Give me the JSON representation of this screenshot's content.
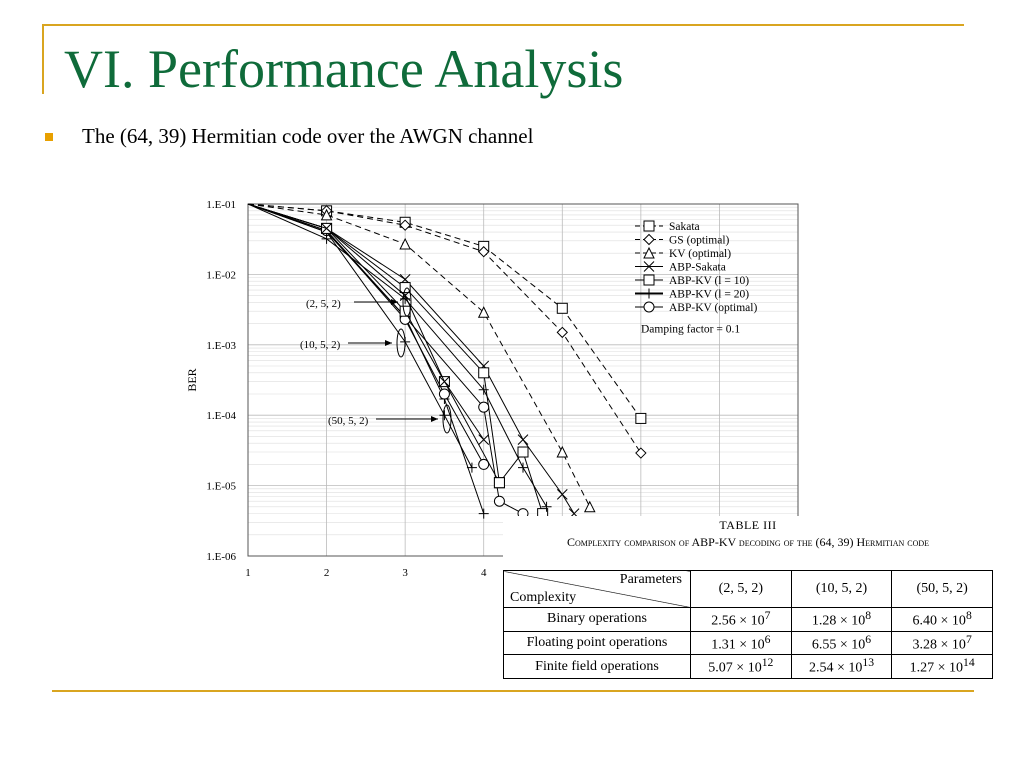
{
  "slide": {
    "title": "VI. Performance Analysis",
    "bullet": "The (64, 39) Hermitian code over the AWGN channel",
    "accent_color": "#0f6b3a",
    "rule_color": "#d9a520",
    "bullet_color": "#e8a000"
  },
  "chart_data": {
    "type": "line",
    "ylabel": "BER",
    "y_scale": "log",
    "ylim": [
      1e-06,
      0.1
    ],
    "xlim": [
      1,
      8
    ],
    "x_ticks": [
      "1",
      "2",
      "3",
      "4"
    ],
    "y_ticks": [
      "1.E-01",
      "1.E-02",
      "1.E-03",
      "1.E-04",
      "1.E-05",
      "1.E-06"
    ],
    "grid": true,
    "legend_position": "top-right",
    "note": "Damping factor = 0.1",
    "annotations": [
      "(2, 5, 2)",
      "(10, 5, 2)",
      "(50, 5, 2)"
    ],
    "series": [
      {
        "name": "Sakata",
        "style": "dashed",
        "marker": "square",
        "x": [
          1,
          2,
          3,
          4,
          5,
          6
        ],
        "y": [
          0.1,
          0.08,
          0.055,
          0.025,
          0.0033,
          9e-05
        ]
      },
      {
        "name": "GS (optimal)",
        "style": "dashed",
        "marker": "diamond",
        "x": [
          1,
          2,
          3,
          4,
          5,
          6
        ],
        "y": [
          0.1,
          0.08,
          0.05,
          0.021,
          0.0015,
          2.9e-05
        ]
      },
      {
        "name": "KV (optimal)",
        "style": "dashed",
        "marker": "triangle",
        "x": [
          1,
          2,
          3,
          4,
          5,
          5.35
        ],
        "y": [
          0.1,
          0.07,
          0.027,
          0.0029,
          3e-05,
          5e-06
        ]
      },
      {
        "name": "ABP-Sakata",
        "style": "solid",
        "marker": "x",
        "x": [
          1,
          2,
          3,
          4,
          4.5,
          5,
          5.15
        ],
        "y": [
          0.1,
          0.045,
          0.0085,
          0.0005,
          4.5e-05,
          7.5e-06,
          4e-06
        ]
      },
      {
        "name": "ABP-KV (l = 10)",
        "style": "solid",
        "marker": "square",
        "x": [
          1,
          2,
          3,
          4,
          4.2,
          4.5,
          4.75
        ],
        "y": [
          0.1,
          0.045,
          0.0065,
          0.0004,
          1.1e-05,
          3e-05,
          4e-06
        ]
      },
      {
        "name": "ABP-KV (l = 20)",
        "style": "solid",
        "marker": "plus",
        "x": [
          1,
          2,
          3,
          4,
          4.5,
          4.8
        ],
        "y": [
          0.1,
          0.032,
          0.0045,
          0.00023,
          1.8e-05,
          5e-06
        ]
      },
      {
        "name": "ABP-KV (optimal)",
        "style": "solid",
        "marker": "circle",
        "x": [
          1,
          2,
          3,
          4,
          4.2,
          4.5
        ],
        "y": [
          0.1,
          0.042,
          0.0025,
          0.00013,
          6e-06,
          4e-06
        ]
      }
    ],
    "extra_curves": [
      {
        "marker": "plus",
        "x": [
          1,
          2,
          3,
          3.5,
          4
        ],
        "y": [
          0.1,
          0.04,
          0.0025,
          0.00017,
          4e-06
        ]
      },
      {
        "marker": "circle",
        "x": [
          1,
          2,
          3,
          3.5,
          4
        ],
        "y": [
          0.1,
          0.042,
          0.0023,
          0.0002,
          2e-05
        ]
      },
      {
        "marker": "plus",
        "x": [
          1,
          2,
          3,
          3.5,
          3.85
        ],
        "y": [
          0.1,
          0.04,
          0.0011,
          0.0001,
          1.8e-05
        ]
      },
      {
        "marker": "square",
        "x": [
          1,
          2,
          3,
          3.5,
          4.2
        ],
        "y": [
          0.1,
          0.045,
          0.003,
          0.0003,
          1.1e-05
        ]
      },
      {
        "marker": "x",
        "x": [
          1,
          2,
          3,
          3.5,
          4
        ],
        "y": [
          0.1,
          0.045,
          0.005,
          0.0003,
          4.5e-05
        ]
      }
    ]
  },
  "table": {
    "caption_title": "TABLE III",
    "caption": "Complexity comparison of ABP-KV decoding of the (64, 39) Hermitian code",
    "header_top": "Parameters",
    "header_bottom": "Complexity",
    "columns": [
      "(2, 5, 2)",
      "(10, 5, 2)",
      "(50, 5, 2)"
    ],
    "rows": [
      {
        "label": "Binary operations",
        "values": [
          {
            "m": "2.56 × 10",
            "e": "7"
          },
          {
            "m": "1.28 × 10",
            "e": "8"
          },
          {
            "m": "6.40 × 10",
            "e": "8"
          }
        ]
      },
      {
        "label": "Floating point operations",
        "values": [
          {
            "m": "1.31 × 10",
            "e": "6"
          },
          {
            "m": "6.55 × 10",
            "e": "6"
          },
          {
            "m": "3.28 × 10",
            "e": "7"
          }
        ]
      },
      {
        "label": "Finite field operations",
        "values": [
          {
            "m": "5.07 × 10",
            "e": "12"
          },
          {
            "m": "2.54 × 10",
            "e": "13"
          },
          {
            "m": "1.27 × 10",
            "e": "14"
          }
        ]
      }
    ]
  }
}
